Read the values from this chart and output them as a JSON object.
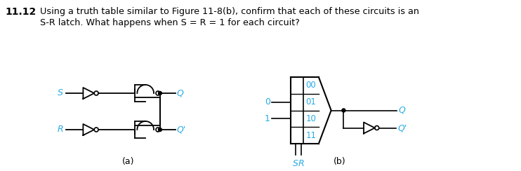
{
  "bg_color": "#ffffff",
  "circuit_color": "#000000",
  "label_color": "#29ABE2",
  "fig_width": 7.42,
  "fig_height": 2.44,
  "header_bold": "11.12",
  "header_line1": "Using a truth table similar to Figure 11-8(b), confirm that each of these circuits is an",
  "header_line2": "S-R latch. What happens when S = R = 1 for each circuit?",
  "label_a": "(a)",
  "label_b": "(b)"
}
